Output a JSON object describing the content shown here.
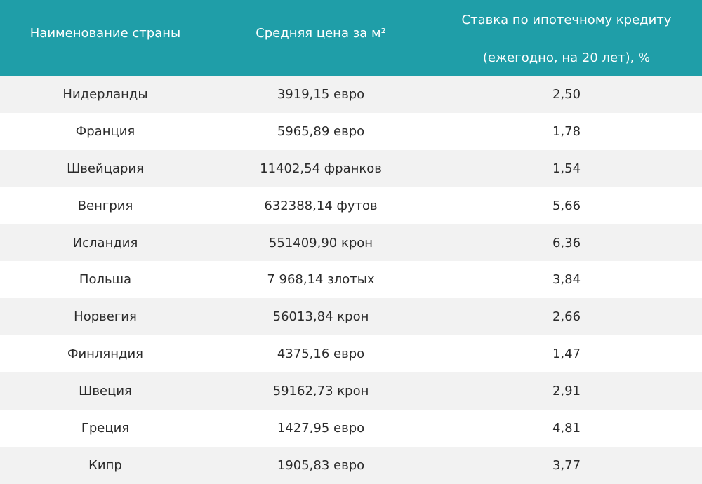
{
  "table": {
    "headers": {
      "country": "Наименование страны",
      "price": "Средняя цена за м²",
      "rate_line1": "Ставка по ипотечному кредиту",
      "rate_line2": "(ежегодно, на 20 лет), %"
    },
    "rows": [
      {
        "country": "Нидерланды",
        "price": "3919,15 евро",
        "rate": "2,50"
      },
      {
        "country": "Франция",
        "price": "5965,89 евро",
        "rate": "1,78"
      },
      {
        "country": "Швейцария",
        "price": "11402,54 франков",
        "rate": "1,54"
      },
      {
        "country": "Венгрия",
        "price": "632388,14 футов",
        "rate": "5,66"
      },
      {
        "country": "Исландия",
        "price": "551409,90 крон",
        "rate": "6,36"
      },
      {
        "country": "Польша",
        "price": "7 968,14 злотых",
        "rate": "3,84"
      },
      {
        "country": "Норвегия",
        "price": "56013,84 крон",
        "rate": "2,66"
      },
      {
        "country": "Финляндия",
        "price": "4375,16 евро",
        "rate": "1,47"
      },
      {
        "country": "Швеция",
        "price": "59162,73 крон",
        "rate": "2,91"
      },
      {
        "country": "Греция",
        "price": "1427,95 евро",
        "rate": "4,81"
      },
      {
        "country": "Кипр",
        "price": "1905,83 евро",
        "rate": "3,77"
      }
    ]
  },
  "colors": {
    "header_bg": "#1f9ea8",
    "header_text": "#ffffff",
    "row_alt_bg": "#f2f2f2",
    "row_bg": "#ffffff"
  }
}
